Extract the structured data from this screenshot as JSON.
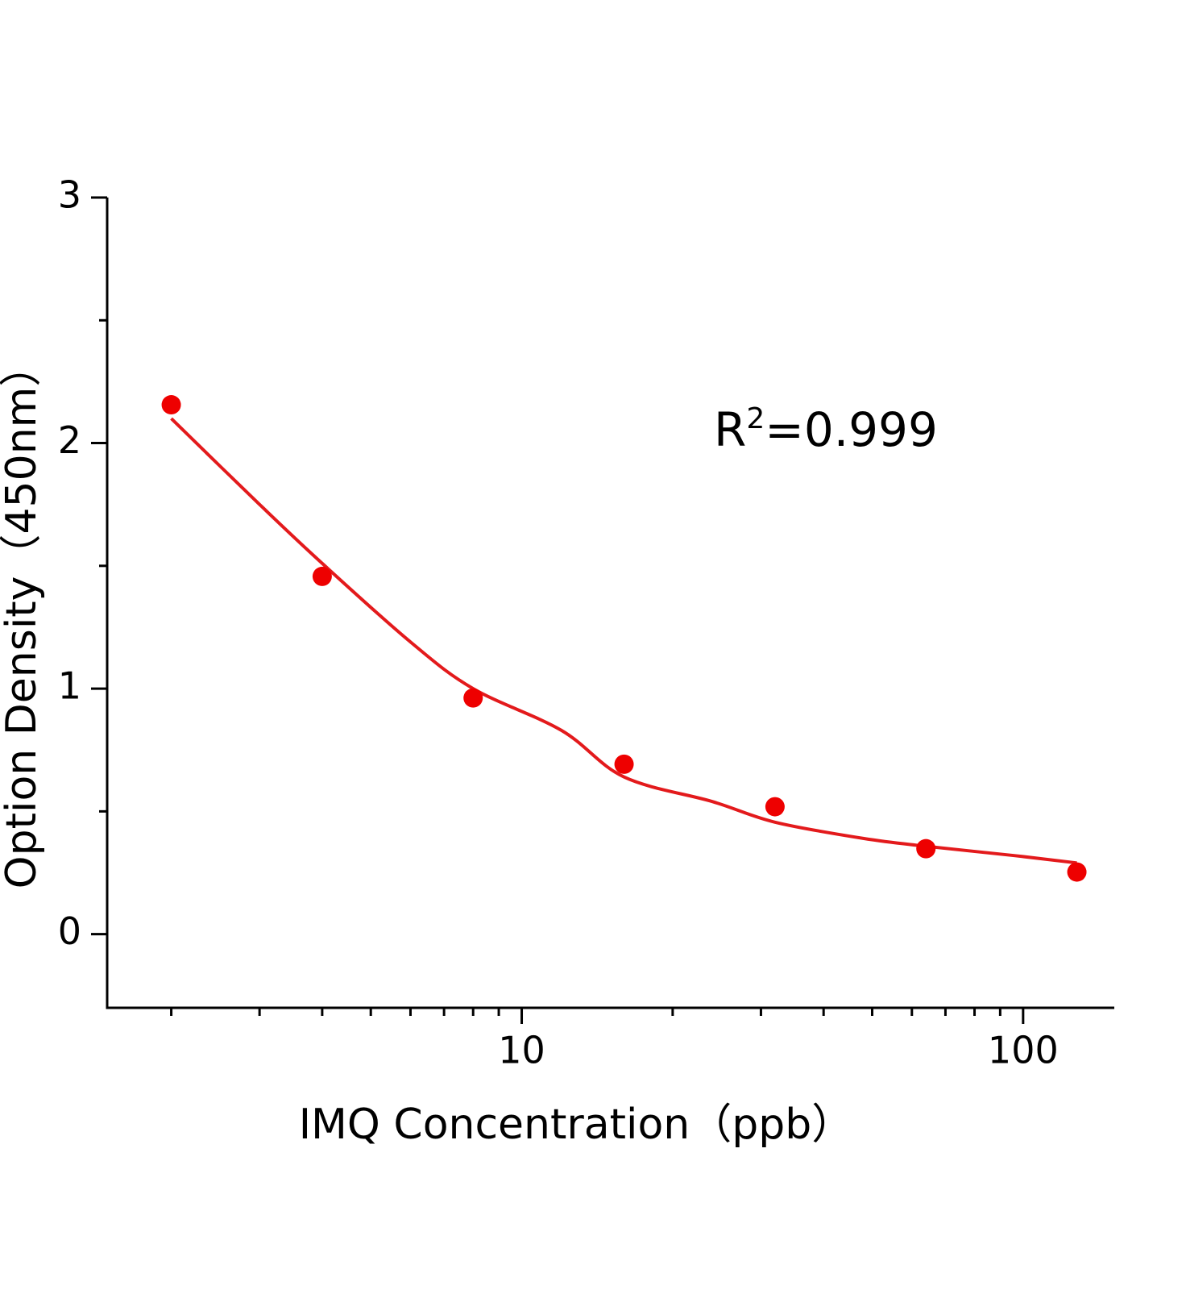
{
  "chart_data": {
    "type": "scatter",
    "x_label": "IMQ Concentration（ppb）",
    "y_label": "Option Density（450nm）",
    "annotation": [
      "R",
      "2",
      "=0.999"
    ],
    "x": [
      2,
      4,
      8,
      16,
      32,
      64,
      128
    ],
    "values": [
      2.156,
      1.457,
      0.962,
      0.692,
      0.519,
      0.348,
      0.253
    ],
    "color": "#ee0000",
    "fit": {
      "x": [
        2,
        3,
        4,
        6,
        8,
        12,
        16,
        24,
        32,
        48,
        64,
        96,
        128
      ],
      "values": [
        2.1,
        1.75,
        1.51,
        1.19,
        1.0,
        0.83,
        0.64,
        0.54,
        0.456,
        0.39,
        0.358,
        0.32,
        0.29
      ],
      "color": "#e31a1c"
    },
    "xscale": "log",
    "xlim": [
      1.49,
      152
    ],
    "xticks": [
      10,
      100
    ],
    "xminorticks": [
      2,
      3,
      4,
      5,
      6,
      7,
      8,
      9,
      20,
      30,
      40,
      50,
      60,
      70,
      80,
      90
    ],
    "ylim": [
      -0.3,
      3
    ],
    "yticks": [
      0,
      1,
      2,
      3
    ],
    "yminorticks": [
      0.5,
      1.5,
      2.5
    ]
  }
}
